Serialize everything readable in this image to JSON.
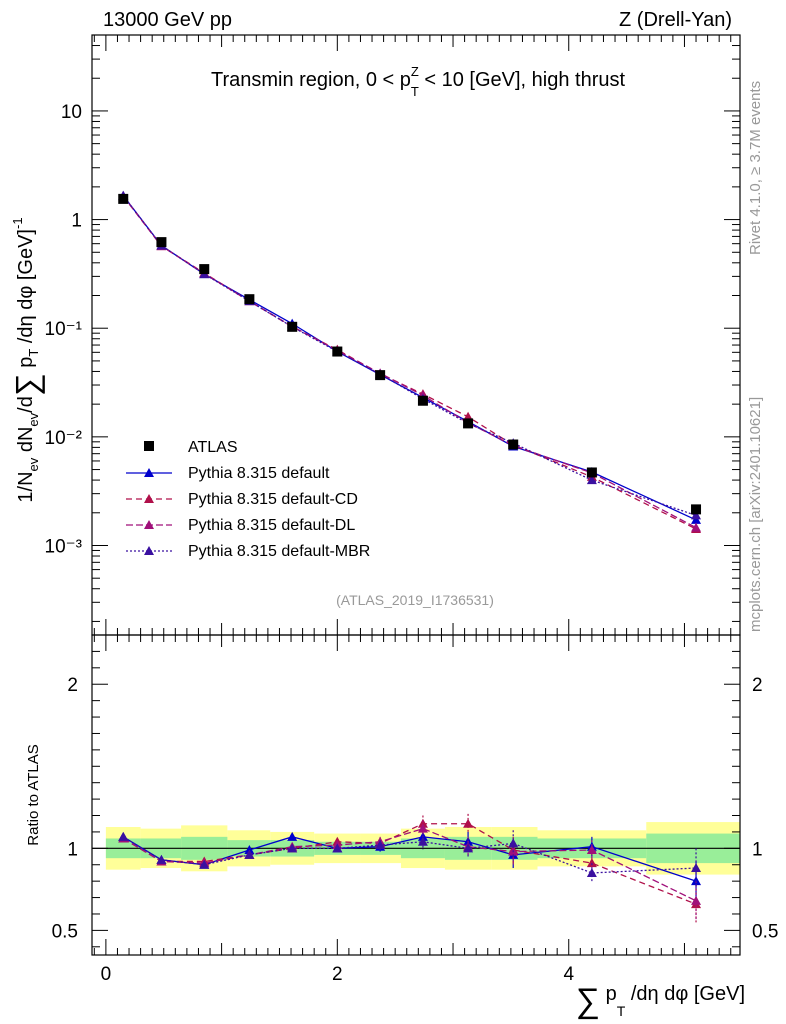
{
  "header": {
    "left": "13000 GeV pp",
    "right": "Z (Drell-Yan)"
  },
  "side_text": {
    "rivet": "Rivet 4.1.0, ≥ 3.7M events",
    "mcplots": "mcplots.cern.ch [arXiv:2401.10621]"
  },
  "chart_data": {
    "type": "line",
    "title": "Transmin region, 0 < p_T^Z < 10 [GeV], high thrust",
    "title_parts": {
      "main": "Transmin region, 0 < p",
      "sup": "Z",
      "sub": "T",
      "rest": " < 10 [GeV], high thrust"
    },
    "analysis_label": "(ATLAS_2019_I1736531)",
    "ylabel": "1/N_ev dN_ev/d∑ p_T /dη dφ [GeV]^-1",
    "ylabel_parts": {
      "a": "1/N",
      "a_sub": "ev",
      "b": " dN",
      "b_sub": "ev",
      "c": "/d",
      "sum": "∑",
      "d": " p",
      "d_sub": "T",
      "e": " /dη dφ  [GeV]",
      "e_sup": "-1"
    },
    "xlabel": "∑ p_T /dη dφ [GeV]",
    "xlabel_parts": {
      "sum": "∑",
      "a": " p",
      "sub": "T",
      "b": " /dη dφ [GeV]"
    },
    "ratio_ylabel": "Ratio to ATLAS",
    "yscale": "log",
    "ylim": [
      0.00015,
      50
    ],
    "xlim": [
      -0.12,
      5.48
    ],
    "ratio_ylim": [
      0.35,
      2.3
    ],
    "y_tick_labels": [
      "10",
      "1",
      "10⁻¹",
      "10⁻²",
      "10⁻³"
    ],
    "x_tick_labels": [
      "0",
      "2",
      "4"
    ],
    "ratio_tick_labels": [
      "2",
      "1",
      "0.5"
    ],
    "legend_position": "middle-left",
    "x": [
      0.15,
      0.48,
      0.85,
      1.24,
      1.61,
      2.0,
      2.37,
      2.74,
      3.13,
      3.52,
      4.2,
      5.1
    ],
    "x_bin_edges": [
      0,
      0.3,
      0.65,
      1.05,
      1.42,
      1.8,
      2.2,
      2.55,
      2.93,
      3.33,
      3.73,
      4.67,
      5.48
    ],
    "data": {
      "name": "ATLAS",
      "values": [
        1.55,
        0.62,
        0.35,
        0.185,
        0.103,
        0.061,
        0.037,
        0.0215,
        0.0133,
        0.0085,
        0.0047,
        0.00215
      ],
      "band_inner": [
        0.06,
        0.06,
        0.07,
        0.05,
        0.05,
        0.04,
        0.04,
        0.06,
        0.07,
        0.07,
        0.06,
        0.09
      ],
      "band_outer": [
        0.13,
        0.12,
        0.14,
        0.11,
        0.1,
        0.09,
        0.09,
        0.12,
        0.13,
        0.13,
        0.11,
        0.16
      ]
    },
    "series": [
      {
        "name": "Pythia 8.315 default",
        "color": "#0000cc",
        "dash": "solid",
        "ratio": [
          1.07,
          0.93,
          0.9,
          0.99,
          1.07,
          1.0,
          1.01,
          1.07,
          1.04,
          0.96,
          1.01,
          0.8
        ]
      },
      {
        "name": "Pythia 8.315 default-CD",
        "color": "#b0104a",
        "dash": "6,4",
        "ratio": [
          1.06,
          0.92,
          0.92,
          0.96,
          1.0,
          1.04,
          1.03,
          1.15,
          1.15,
          0.99,
          0.91,
          0.66
        ]
      },
      {
        "name": "Pythia 8.315 default-DL",
        "color": "#a0107a",
        "dash": "7,3",
        "ratio": [
          1.06,
          0.92,
          0.91,
          0.96,
          1.01,
          1.02,
          1.04,
          1.12,
          1.01,
          0.98,
          0.99,
          0.68
        ]
      },
      {
        "name": "Pythia 8.315 default-MBR",
        "color": "#3a10a0",
        "dash": "2,2",
        "ratio": [
          1.07,
          0.93,
          0.9,
          0.96,
          1.0,
          1.0,
          1.02,
          1.04,
          1.0,
          1.03,
          0.85,
          0.88
        ]
      }
    ],
    "ratio_errors": [
      0.0,
      0.01,
      0.01,
      0.01,
      0.015,
      0.02,
      0.03,
      0.05,
      0.06,
      0.08,
      0.06,
      0.12
    ]
  }
}
